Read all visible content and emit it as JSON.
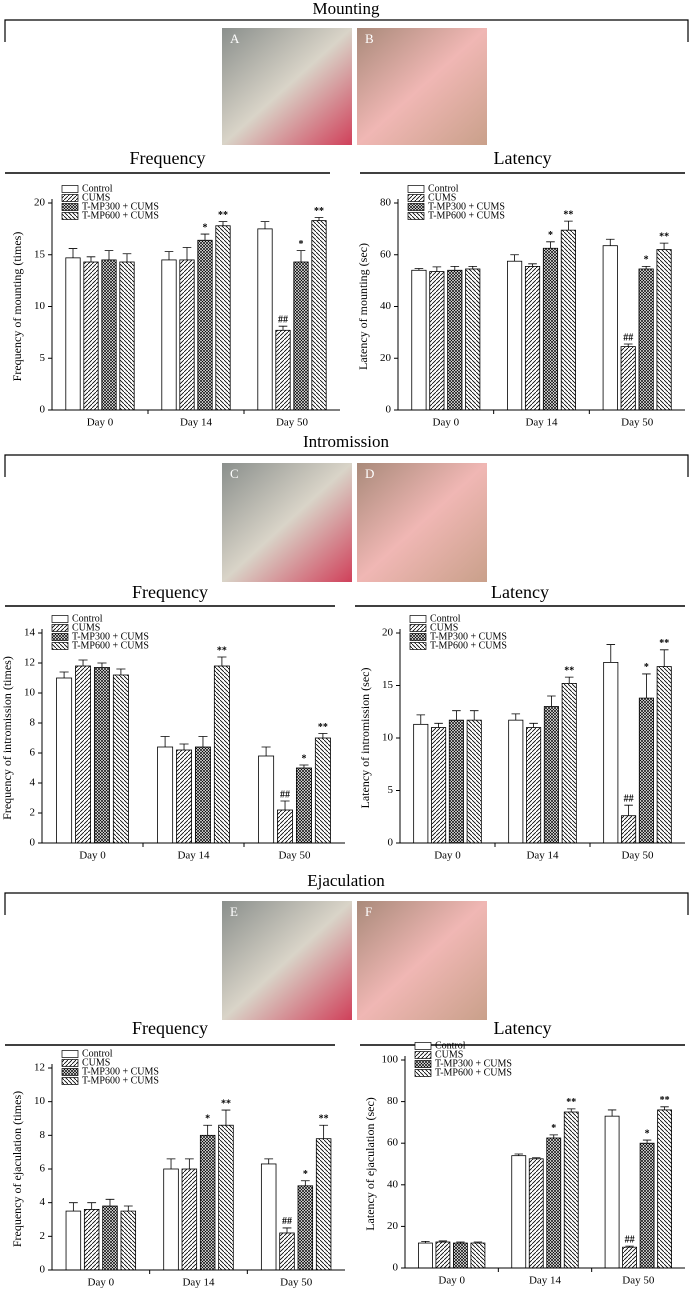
{
  "sections": [
    {
      "title": "Mounting",
      "photos": [
        "A",
        "B"
      ]
    },
    {
      "title": "Intromission",
      "photos": [
        "C",
        "D"
      ]
    },
    {
      "title": "Ejaculation",
      "photos": [
        "E",
        "F"
      ]
    }
  ],
  "chart_data": [
    {
      "type": "bar",
      "title": "Frequency",
      "ylabel": "Frequency of mounting (times)",
      "categories": [
        "Day 0",
        "Day 14",
        "Day 50"
      ],
      "ylim": [
        0,
        20
      ],
      "yticks": [
        0,
        5,
        10,
        15,
        20
      ],
      "series": [
        {
          "name": "Control",
          "pattern": "none",
          "values": [
            14.7,
            14.5,
            17.5
          ],
          "errors": [
            0.9,
            0.8,
            0.7
          ],
          "annotations": [
            null,
            null,
            null
          ]
        },
        {
          "name": "CUMS",
          "pattern": "diagonal",
          "values": [
            14.3,
            14.5,
            7.7
          ],
          "errors": [
            0.5,
            1.2,
            0.4
          ],
          "annotations": [
            null,
            null,
            "##"
          ]
        },
        {
          "name": "T-MP300 + CUMS",
          "pattern": "crosshatch",
          "values": [
            14.5,
            16.4,
            14.3
          ],
          "errors": [
            0.9,
            0.6,
            1.1
          ],
          "annotations": [
            null,
            "*",
            "*"
          ]
        },
        {
          "name": "T-MP600 + CUMS",
          "pattern": "backdiagonal",
          "values": [
            14.3,
            17.8,
            18.3
          ],
          "errors": [
            0.8,
            0.4,
            0.3
          ],
          "annotations": [
            null,
            "**",
            "**"
          ]
        }
      ]
    },
    {
      "type": "bar",
      "title": "Latency",
      "ylabel": "Latency of mounting (sec)",
      "categories": [
        "Day 0",
        "Day 14",
        "Day 50"
      ],
      "ylim": [
        0,
        80
      ],
      "yticks": [
        0,
        20,
        40,
        60,
        80
      ],
      "series": [
        {
          "name": "Control",
          "pattern": "none",
          "values": [
            54,
            57.5,
            63.5
          ],
          "errors": [
            0.7,
            2.5,
            2.5
          ],
          "annotations": [
            null,
            null,
            null
          ]
        },
        {
          "name": "CUMS",
          "pattern": "diagonal",
          "values": [
            53.5,
            55.5,
            24.5
          ],
          "errors": [
            1.8,
            1,
            1
          ],
          "annotations": [
            null,
            null,
            "##"
          ]
        },
        {
          "name": "T-MP300 + CUMS",
          "pattern": "crosshatch",
          "values": [
            54,
            62.5,
            54.5
          ],
          "errors": [
            1.5,
            2.5,
            1
          ],
          "annotations": [
            null,
            "*",
            "*"
          ]
        },
        {
          "name": "T-MP600 + CUMS",
          "pattern": "backdiagonal",
          "values": [
            54.5,
            69.5,
            62
          ],
          "errors": [
            1,
            3.5,
            2.5
          ],
          "annotations": [
            null,
            "**",
            "**"
          ]
        }
      ]
    },
    {
      "type": "bar",
      "title": "Frequency",
      "ylabel": "Frequency of intromission (times)",
      "categories": [
        "Day 0",
        "Day 14",
        "Day 50"
      ],
      "ylim": [
        0,
        14
      ],
      "yticks": [
        0,
        2,
        4,
        6,
        8,
        10,
        12,
        14
      ],
      "series": [
        {
          "name": "Control",
          "pattern": "none",
          "values": [
            11,
            6.4,
            5.8
          ],
          "errors": [
            0.4,
            0.7,
            0.6
          ],
          "annotations": [
            null,
            null,
            null
          ]
        },
        {
          "name": "CUMS",
          "pattern": "diagonal",
          "values": [
            11.8,
            6.2,
            2.2
          ],
          "errors": [
            0.4,
            0.4,
            0.6
          ],
          "annotations": [
            null,
            null,
            "##"
          ]
        },
        {
          "name": "T-MP300 + CUMS",
          "pattern": "crosshatch",
          "values": [
            11.7,
            6.4,
            5.0
          ],
          "errors": [
            0.3,
            0.7,
            0.2
          ],
          "annotations": [
            null,
            null,
            "*"
          ]
        },
        {
          "name": "T-MP600 + CUMS",
          "pattern": "backdiagonal",
          "values": [
            11.2,
            11.8,
            7.0
          ],
          "errors": [
            0.4,
            0.6,
            0.3
          ],
          "annotations": [
            null,
            "**",
            "**"
          ]
        }
      ]
    },
    {
      "type": "bar",
      "title": "Latency",
      "ylabel": "Latency of intromission (sec)",
      "categories": [
        "Day 0",
        "Day 14",
        "Day 50"
      ],
      "ylim": [
        0,
        20
      ],
      "yticks": [
        0,
        5,
        10,
        15,
        20
      ],
      "series": [
        {
          "name": "Control",
          "pattern": "none",
          "values": [
            11.3,
            11.7,
            17.2
          ],
          "errors": [
            0.9,
            0.6,
            1.7
          ],
          "annotations": [
            null,
            null,
            null
          ]
        },
        {
          "name": "CUMS",
          "pattern": "diagonal",
          "values": [
            11,
            11,
            2.6
          ],
          "errors": [
            0.4,
            0.4,
            1.0
          ],
          "annotations": [
            null,
            null,
            "##"
          ]
        },
        {
          "name": "T-MP300 + CUMS",
          "pattern": "crosshatch",
          "values": [
            11.7,
            13,
            13.8
          ],
          "errors": [
            0.9,
            1,
            2.3
          ],
          "annotations": [
            null,
            null,
            "*"
          ]
        },
        {
          "name": "T-MP600 + CUMS",
          "pattern": "backdiagonal",
          "values": [
            11.7,
            15.2,
            16.8
          ],
          "errors": [
            0.9,
            0.6,
            1.6
          ],
          "annotations": [
            null,
            "**",
            "**"
          ]
        }
      ]
    },
    {
      "type": "bar",
      "title": "Frequency",
      "ylabel": "Frequency of ejaculation (times)",
      "categories": [
        "Day 0",
        "Day 14",
        "Day 50"
      ],
      "ylim": [
        0,
        12
      ],
      "yticks": [
        0,
        2,
        4,
        6,
        8,
        10,
        12
      ],
      "series": [
        {
          "name": "Control",
          "pattern": "none",
          "values": [
            3.5,
            6.0,
            6.3
          ],
          "errors": [
            0.5,
            0.6,
            0.3
          ],
          "annotations": [
            null,
            null,
            null
          ]
        },
        {
          "name": "CUMS",
          "pattern": "diagonal",
          "values": [
            3.6,
            6.0,
            2.2
          ],
          "errors": [
            0.4,
            0.6,
            0.3
          ],
          "annotations": [
            null,
            null,
            "##"
          ]
        },
        {
          "name": "T-MP300 + CUMS",
          "pattern": "crosshatch",
          "values": [
            3.8,
            8.0,
            5.0
          ],
          "errors": [
            0.4,
            0.6,
            0.3
          ],
          "annotations": [
            null,
            "*",
            "*"
          ]
        },
        {
          "name": "T-MP600 + CUMS",
          "pattern": "backdiagonal",
          "values": [
            3.5,
            8.6,
            7.8
          ],
          "errors": [
            0.3,
            0.9,
            0.8
          ],
          "annotations": [
            null,
            "**",
            "**"
          ]
        }
      ]
    },
    {
      "type": "bar",
      "title": "Latency",
      "ylabel": "Latency of ejaculation (sec)",
      "categories": [
        "Day 0",
        "Day 14",
        "Day 50"
      ],
      "ylim": [
        0,
        100
      ],
      "yticks": [
        0,
        20,
        40,
        60,
        80,
        100
      ],
      "series": [
        {
          "name": "Control",
          "pattern": "none",
          "values": [
            12,
            54,
            73
          ],
          "errors": [
            0.8,
            0.8,
            3
          ],
          "annotations": [
            null,
            null,
            null
          ]
        },
        {
          "name": "CUMS",
          "pattern": "diagonal",
          "values": [
            12.5,
            52.5,
            10
          ],
          "errors": [
            0.5,
            0.5,
            0.5
          ],
          "annotations": [
            null,
            null,
            "##"
          ]
        },
        {
          "name": "T-MP300 + CUMS",
          "pattern": "crosshatch",
          "values": [
            12,
            62.5,
            60
          ],
          "errors": [
            0.5,
            1.5,
            1.5
          ],
          "annotations": [
            null,
            "*",
            "*"
          ]
        },
        {
          "name": "T-MP600 + CUMS",
          "pattern": "backdiagonal",
          "values": [
            12,
            75,
            76
          ],
          "errors": [
            0.5,
            1.5,
            1.5
          ],
          "annotations": [
            null,
            "**",
            "**"
          ]
        }
      ]
    }
  ]
}
